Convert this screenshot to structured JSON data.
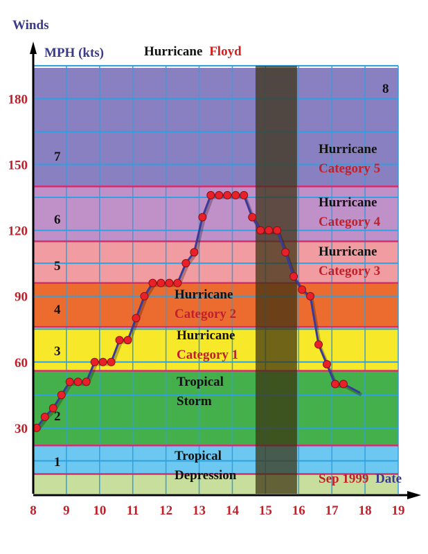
{
  "chart_data": {
    "type": "line",
    "title": {
      "part1": "Hurricane",
      "part2": "Floyd"
    },
    "ylabel_top": "Winds",
    "ylabel": "MPH (kts)",
    "xlabel": {
      "part1": "Sep 1999",
      "part2": "Date"
    },
    "xlim": [
      8,
      19
    ],
    "ylim": [
      0,
      194
    ],
    "x_ticks": [
      8,
      9,
      10,
      11,
      12,
      13,
      14,
      15,
      16,
      17,
      18,
      19
    ],
    "y_ticks": [
      30,
      60,
      90,
      120,
      150,
      180
    ],
    "grid": true,
    "grid_step_y": 15,
    "shaded_x_range": [
      14.7,
      15.95
    ],
    "bands": [
      {
        "range": [
          0,
          9
        ],
        "color": "#c8de9c",
        "number": ""
      },
      {
        "range": [
          9,
          22
        ],
        "color": "#6cc8f0",
        "number": "1",
        "title": "Tropical",
        "subtitle": "Depression"
      },
      {
        "range": [
          22,
          56
        ],
        "color": "#44b04c",
        "number": "2",
        "title": "Tropical",
        "subtitle": "Storm"
      },
      {
        "range": [
          56,
          76
        ],
        "color": "#f8e82a",
        "number": "3",
        "title": "Hurricane",
        "subtitle": "Category 1"
      },
      {
        "range": [
          76,
          96
        ],
        "color": "#ec6c30",
        "number": "4",
        "title": "Hurricane",
        "subtitle": "Category 2"
      },
      {
        "range": [
          96,
          115
        ],
        "color": "#f09ca0",
        "number": "5",
        "title": "Hurricane",
        "subtitle": "Category 3"
      },
      {
        "range": [
          115,
          140
        ],
        "color": "#c090c8",
        "number": "6",
        "title": "Hurricane",
        "subtitle": "Category 4"
      },
      {
        "range": [
          140,
          194
        ],
        "color": "#8880c0",
        "number": "7",
        "title": "Hurricane",
        "subtitle": "Category 5"
      }
    ],
    "extra_number": "8",
    "series": [
      {
        "x": [
          8.1,
          8.35,
          8.6,
          8.85,
          9.1,
          9.35,
          9.6,
          9.85,
          10.1,
          10.35,
          10.6,
          10.85,
          11.1,
          11.35,
          11.6,
          11.85,
          12.1,
          12.35,
          12.6,
          12.85,
          13.1,
          13.35,
          13.6,
          13.85,
          14.1,
          14.35,
          14.6,
          14.85,
          15.1,
          15.35,
          15.6,
          15.85,
          16.1,
          16.35,
          16.6,
          16.85,
          17.1,
          17.35
        ],
        "y": [
          30,
          35,
          39,
          45,
          51,
          51,
          51,
          60,
          60,
          60,
          70,
          70,
          80,
          90,
          96,
          96,
          96,
          96,
          105,
          110,
          126,
          136,
          136,
          136,
          136,
          136,
          126,
          120,
          120,
          120,
          110,
          99,
          93,
          90,
          68,
          59,
          50,
          50
        ],
        "line_end": {
          "x": 17.85,
          "y": 46
        },
        "line_color": "#3a3a9a",
        "marker_color": "#e8202a"
      }
    ],
    "colors": {
      "boundary": "#d03070",
      "grid": "#30a0e0",
      "tick_label": "#c0202a",
      "axis_label": "#3a3a8a",
      "shade": "#3a3010"
    }
  }
}
